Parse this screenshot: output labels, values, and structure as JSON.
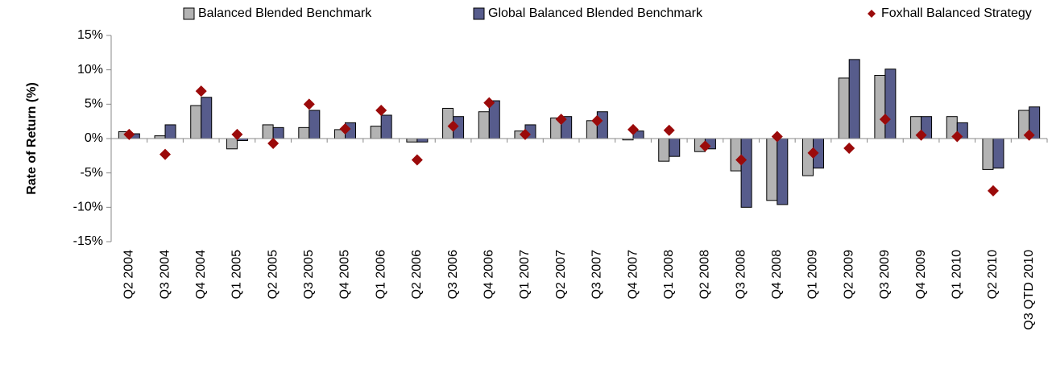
{
  "chart_data": {
    "type": "bar",
    "y_label": "Rate of Return (%)",
    "categories": [
      "Q2 2004",
      "Q3 2004",
      "Q4 2004",
      "Q1 2005",
      "Q2 2005",
      "Q3 2005",
      "Q4 2005",
      "Q1 2006",
      "Q2 2006",
      "Q3 2006",
      "Q4 2006",
      "Q1 2007",
      "Q2 2007",
      "Q3 2007",
      "Q4 2007",
      "Q1 2008",
      "Q2 2008",
      "Q3 2008",
      "Q4 2008",
      "Q1 2009",
      "Q2 2009",
      "Q3 2009",
      "Q4 2009",
      "Q1 2010",
      "Q2 2010",
      "Q3 QTD 2010"
    ],
    "series": [
      {
        "name": "Balanced Blended Benchmark",
        "type": "bar",
        "color": "#b3b3b3",
        "values": [
          1.0,
          0.4,
          4.8,
          -1.5,
          2.0,
          1.6,
          1.3,
          1.8,
          -0.5,
          4.4,
          3.9,
          1.1,
          3.0,
          2.6,
          -0.2,
          -3.3,
          -1.9,
          -4.7,
          -9.0,
          -5.4,
          8.8,
          9.2,
          3.2,
          3.2,
          -4.5,
          4.1
        ]
      },
      {
        "name": "Global Balanced Blended Benchmark",
        "type": "bar",
        "color": "#575c8c",
        "values": [
          0.7,
          2.0,
          6.0,
          -0.3,
          1.6,
          4.1,
          2.3,
          3.4,
          -0.5,
          3.2,
          5.5,
          2.0,
          3.2,
          3.9,
          1.1,
          -2.6,
          -1.5,
          -10.0,
          -9.6,
          -4.3,
          11.5,
          10.1,
          3.2,
          2.3,
          -4.3,
          4.6
        ]
      },
      {
        "name": "Foxhall Balanced Strategy",
        "type": "scatter",
        "color": "#9b0a0a",
        "values": [
          0.6,
          -2.3,
          6.9,
          0.6,
          -0.7,
          5.0,
          1.4,
          4.1,
          -3.1,
          1.8,
          5.2,
          0.6,
          2.8,
          2.6,
          1.3,
          1.2,
          -1.1,
          -3.1,
          0.3,
          -2.1,
          -1.4,
          2.8,
          0.5,
          0.3,
          -7.6,
          0.5
        ]
      }
    ],
    "ylim": [
      -15,
      15
    ],
    "yticks": [
      {
        "value": -15,
        "label": "-15%"
      },
      {
        "value": -10,
        "label": "-10%"
      },
      {
        "value": -5,
        "label": "-5%"
      },
      {
        "value": 0,
        "label": "0%"
      },
      {
        "value": 5,
        "label": "5%"
      },
      {
        "value": 10,
        "label": "10%"
      },
      {
        "value": 15,
        "label": "15%"
      }
    ],
    "legend": "top",
    "grid": false
  }
}
